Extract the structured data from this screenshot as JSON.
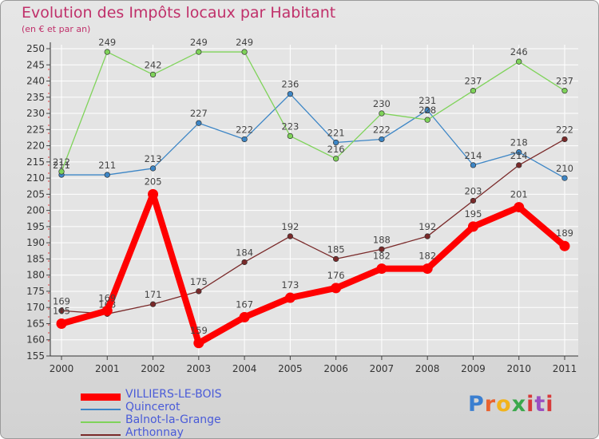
{
  "chart_data": {
    "type": "line",
    "title": "Evolution des Impôts locaux par Habitant",
    "subtitle": "(en € et par an)",
    "xlabel": "",
    "ylabel": "",
    "ylim": [
      155,
      250
    ],
    "ytick_step": 5,
    "grid": true,
    "legend_position": "bottom-left",
    "categories": [
      "2000",
      "2001",
      "2002",
      "2003",
      "2004",
      "2005",
      "2006",
      "2007",
      "2008",
      "2009",
      "2010",
      "2011"
    ],
    "series": [
      {
        "name": "VILLIERS-LE-BOIS",
        "color": "#ff0000",
        "values": [
          165,
          169,
          205,
          159,
          167,
          173,
          176,
          182,
          182,
          195,
          201,
          189
        ]
      },
      {
        "name": "Quincerot",
        "color": "#3d86c6",
        "values": [
          211,
          211,
          213,
          227,
          222,
          236,
          221,
          222,
          231,
          214,
          218,
          210
        ]
      },
      {
        "name": "Balnot-la-Grange",
        "color": "#7fd35a",
        "values": [
          212,
          249,
          242,
          249,
          249,
          223,
          216,
          230,
          228,
          237,
          246,
          237
        ]
      },
      {
        "name": "Arthonnay",
        "color": "#7a2a2a",
        "values": [
          169,
          168,
          171,
          175,
          184,
          192,
          185,
          188,
          192,
          203,
          214,
          222
        ]
      }
    ]
  }
}
